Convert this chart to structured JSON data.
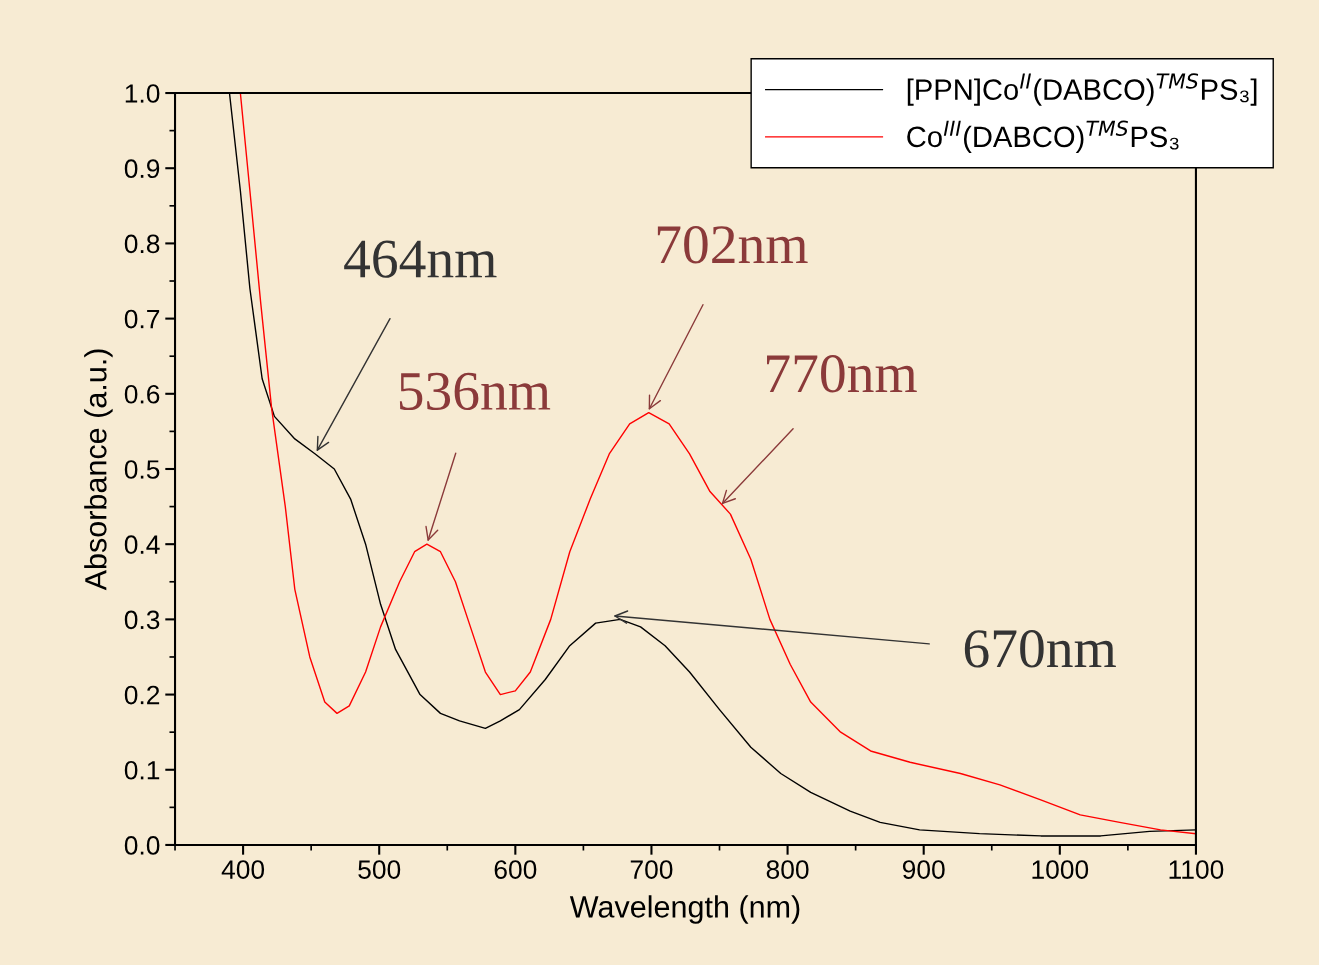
{
  "chart_data": {
    "type": "line",
    "xlabel": "Wavelength (nm)",
    "ylabel": "Absorbance (a.u.)",
    "xlim": [
      350,
      1100
    ],
    "xticks": [
      400,
      500,
      600,
      700,
      800,
      900,
      1000,
      1100
    ],
    "ylim": [
      0,
      1.0
    ],
    "yticks": [
      {
        "value": 0,
        "label": "0.0"
      },
      0.1,
      0.2,
      0.3,
      0.4,
      0.5,
      0.6,
      0.7,
      0.8,
      0.9,
      {
        "value": 1.0,
        "label": "1.0"
      }
    ],
    "grid": false,
    "legend": "top right",
    "marker": "none",
    "line_style": "solid",
    "series": [
      {
        "name": "[PPN]Co$^{II}$(DABCO)$^{TMS}$PS₃]",
        "color": "#000000",
        "x": [
          390,
          398,
          405,
          414,
          423,
          438,
          453,
          467,
          479,
          490,
          501,
          512,
          530,
          545,
          559,
          578,
          589,
          603,
          622,
          640,
          659,
          677,
          692,
          710,
          728,
          750,
          773,
          795,
          817,
          846,
          868,
          897,
          941,
          986,
          1030,
          1066,
          1100
        ],
        "values": [
          1.0,
          0.87,
          0.74,
          0.62,
          0.57,
          0.54,
          0.52,
          0.5,
          0.46,
          0.4,
          0.32,
          0.26,
          0.2,
          0.175,
          0.165,
          0.155,
          0.165,
          0.18,
          0.22,
          0.265,
          0.295,
          0.3,
          0.29,
          0.265,
          0.23,
          0.18,
          0.13,
          0.095,
          0.07,
          0.045,
          0.03,
          0.02,
          0.015,
          0.012,
          0.012,
          0.018,
          0.02
        ]
      },
      {
        "name": "Co$^{III}$(DABCO)$^{TMS}$PS₃",
        "color": "#ff0000",
        "x": [
          398,
          405,
          413,
          421,
          431,
          438,
          449,
          460,
          469,
          478,
          490,
          501,
          515,
          526,
          535,
          545,
          556,
          567,
          578,
          589,
          600,
          611,
          626,
          640,
          655,
          669,
          684,
          698,
          713,
          728,
          743,
          758,
          773,
          787,
          802,
          817,
          839,
          861,
          890,
          927,
          956,
          986,
          1015,
          1044,
          1074,
          1100
        ],
        "values": [
          1.0,
          0.87,
          0.72,
          0.58,
          0.45,
          0.34,
          0.25,
          0.19,
          0.175,
          0.185,
          0.23,
          0.29,
          0.35,
          0.39,
          0.4,
          0.39,
          0.35,
          0.29,
          0.23,
          0.2,
          0.205,
          0.23,
          0.3,
          0.39,
          0.46,
          0.52,
          0.56,
          0.575,
          0.56,
          0.52,
          0.47,
          0.44,
          0.38,
          0.3,
          0.24,
          0.19,
          0.15,
          0.125,
          0.11,
          0.095,
          0.08,
          0.06,
          0.04,
          0.03,
          0.02,
          0.015
        ]
      }
    ],
    "annotations": [
      {
        "text": "464nm",
        "x": 453,
        "y": 0.52
      },
      {
        "text": "536nm",
        "x": 535,
        "y": 0.4
      },
      {
        "text": "702nm",
        "x": 697,
        "y": 0.575
      },
      {
        "text": "770nm",
        "x": 750,
        "y": 0.45
      },
      {
        "text": "670nm",
        "x": 670,
        "y": 0.305
      }
    ]
  }
}
